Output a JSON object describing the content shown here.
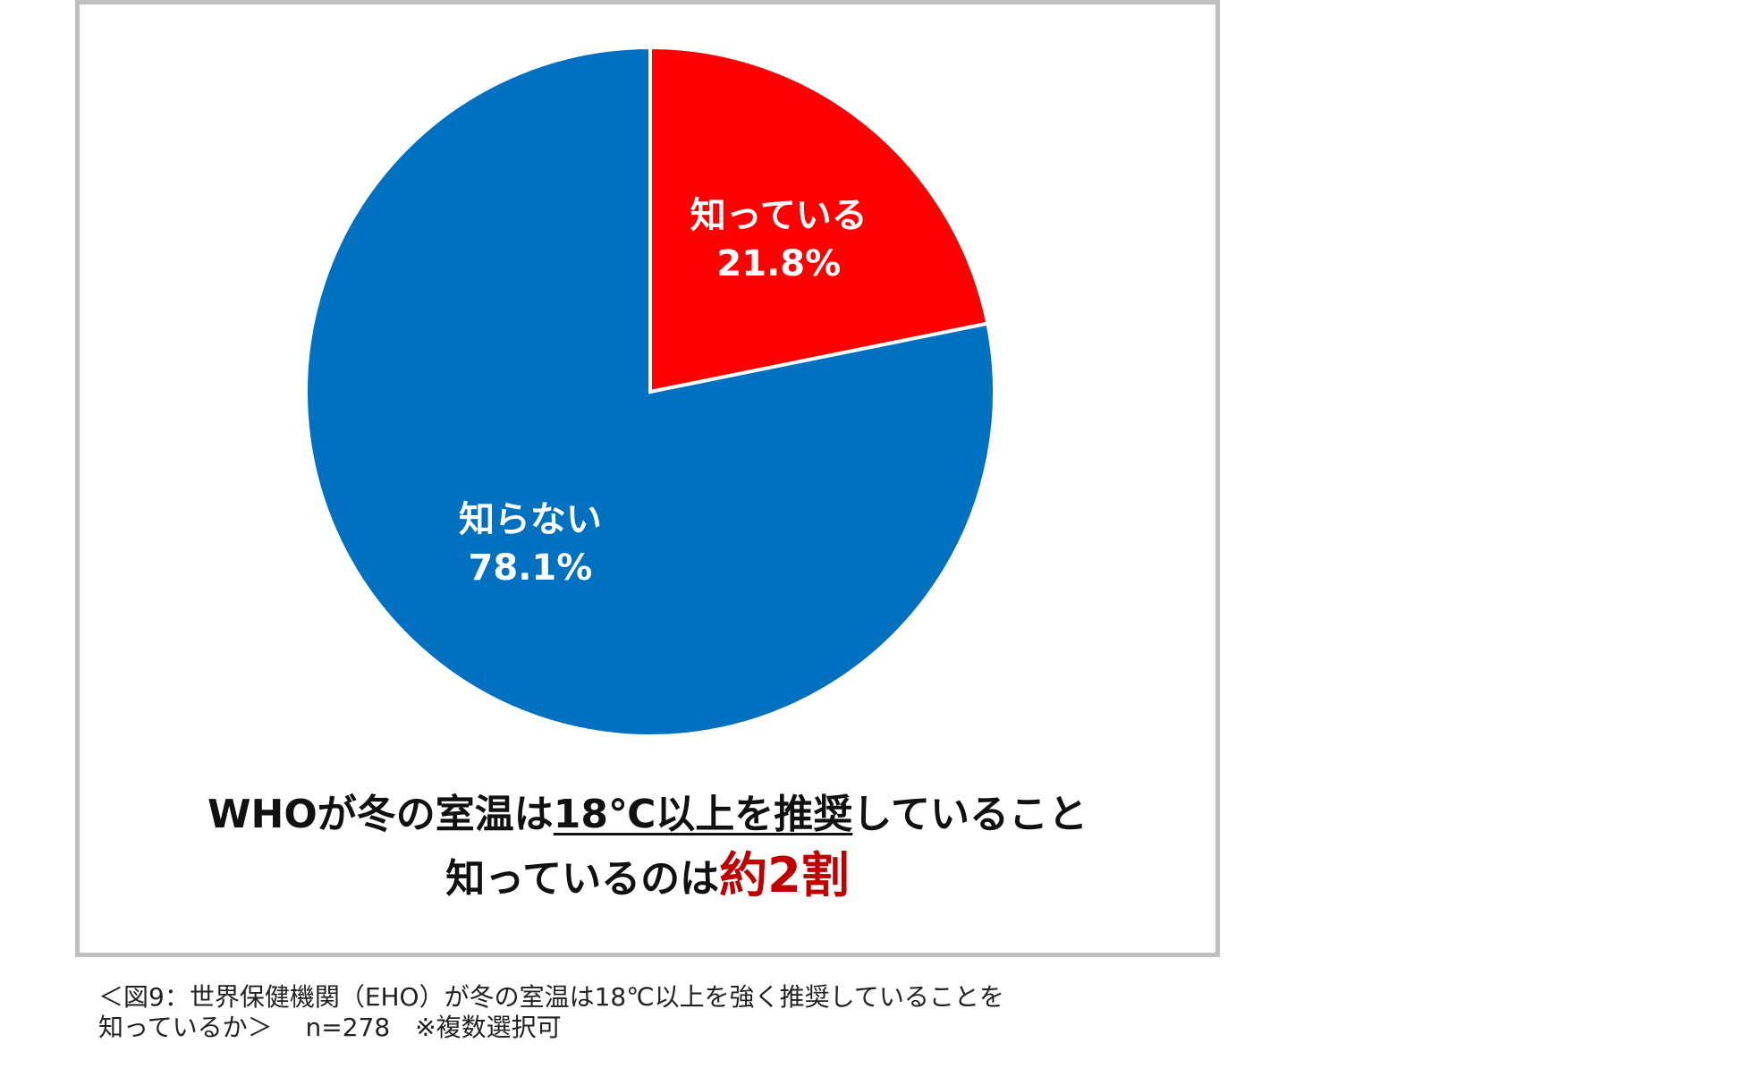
{
  "chart_data": {
    "type": "pie",
    "slices": [
      {
        "label": "知っている",
        "value": 21.8,
        "value_label": "21.8%",
        "color": "#ff0000"
      },
      {
        "label": "知らない",
        "value": 78.1,
        "value_label": "78.1%",
        "color": "#0070c0"
      }
    ],
    "start_angle_deg": 0,
    "direction": "clockwise"
  },
  "headline": {
    "line1_a": "WHOが冬の室温は",
    "line1_b": "18℃以上を推奨",
    "line1_c": "していること",
    "line2_a": "知っているのは",
    "line2_b": "約2割"
  },
  "caption": {
    "line1": "＜図9：世界保健機関（EHO）が冬の室温は18℃以上を強く推奨していることを",
    "line2": "知っているか＞　 n=278　※複数選択可"
  }
}
